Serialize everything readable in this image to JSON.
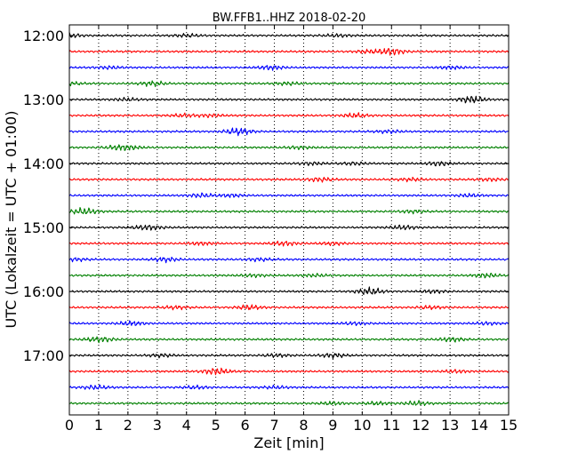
{
  "chart_data": {
    "type": "line",
    "title": "BW.FFB1..HHZ 2018-02-20",
    "xlabel": "Zeit  [min]",
    "ylabel": "UTC (Lokalzeit = UTC + 01:00)",
    "xlim": [
      0,
      15
    ],
    "x_ticks": [
      "0",
      "1",
      "2",
      "3",
      "4",
      "5",
      "6",
      "7",
      "8",
      "9",
      "10",
      "11",
      "12",
      "13",
      "14",
      "15"
    ],
    "y_ticks": [
      "12:00",
      "13:00",
      "14:00",
      "15:00",
      "16:00",
      "17:00"
    ],
    "grid": "vertical dotted",
    "colors": [
      "#000000",
      "#ff0000",
      "#0000ff",
      "#008000"
    ],
    "series": [
      {
        "start": "12:00",
        "color": "#000000"
      },
      {
        "start": "12:15",
        "color": "#ff0000"
      },
      {
        "start": "12:30",
        "color": "#0000ff"
      },
      {
        "start": "12:45",
        "color": "#008000"
      },
      {
        "start": "13:00",
        "color": "#000000"
      },
      {
        "start": "13:15",
        "color": "#ff0000"
      },
      {
        "start": "13:30",
        "color": "#0000ff"
      },
      {
        "start": "13:45",
        "color": "#008000"
      },
      {
        "start": "14:00",
        "color": "#000000"
      },
      {
        "start": "14:15",
        "color": "#ff0000"
      },
      {
        "start": "14:30",
        "color": "#0000ff"
      },
      {
        "start": "14:45",
        "color": "#008000"
      },
      {
        "start": "15:00",
        "color": "#000000"
      },
      {
        "start": "15:15",
        "color": "#ff0000"
      },
      {
        "start": "15:30",
        "color": "#0000ff"
      },
      {
        "start": "15:45",
        "color": "#008000"
      },
      {
        "start": "16:00",
        "color": "#000000"
      },
      {
        "start": "16:15",
        "color": "#ff0000"
      },
      {
        "start": "16:30",
        "color": "#0000ff"
      },
      {
        "start": "16:45",
        "color": "#008000"
      },
      {
        "start": "17:00",
        "color": "#000000"
      },
      {
        "start": "17:15",
        "color": "#ff0000"
      },
      {
        "start": "17:30",
        "color": "#0000ff"
      },
      {
        "start": "17:45",
        "color": "#008000"
      }
    ]
  }
}
